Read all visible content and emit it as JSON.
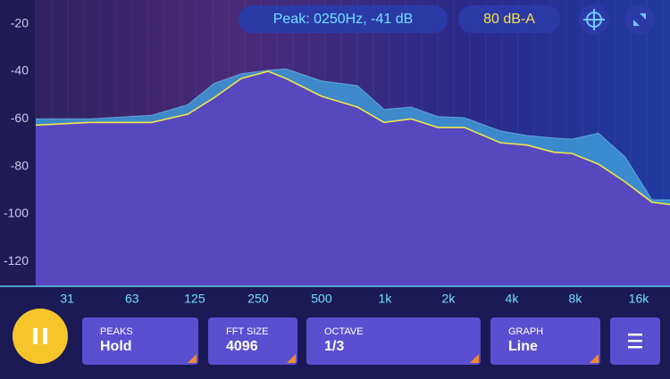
{
  "chart_data": {
    "type": "line",
    "x": [
      22,
      40,
      78,
      116,
      155,
      208,
      279,
      339,
      500,
      740,
      990,
      1330,
      1780,
      2380,
      3520,
      4730,
      6330,
      7700,
      10300,
      13800,
      18500,
      22528
    ],
    "series": [
      {
        "name": "Peaks",
        "color": "#7fd0f5",
        "fill": "#3e9ad8",
        "values": [
          -60,
          -60,
          -58.5,
          -54,
          -45,
          -41,
          -39.5,
          -39,
          -44,
          -46,
          -56,
          -55,
          -59,
          -59.5,
          -65,
          -67,
          -68,
          -68.5,
          -66,
          -76,
          -94,
          -94
        ]
      },
      {
        "name": "Line",
        "color": "#f2e64a",
        "fill": "#5848c0",
        "values": [
          -62.6,
          -61.5,
          -61.5,
          -58,
          -51,
          -43,
          -40,
          -43,
          -50.5,
          -55,
          -61.5,
          -60,
          -63.6,
          -63.6,
          -70,
          -71,
          -74,
          -74.5,
          -79,
          -86.5,
          -95,
          -96
        ]
      }
    ],
    "log_x": true,
    "xlim": [
      22,
      22528
    ],
    "xticks": [
      31,
      63,
      125,
      250,
      500,
      {
        "value": 1000,
        "label": "1k"
      },
      {
        "value": 2000,
        "label": "2k"
      },
      {
        "value": 4000,
        "label": "4k"
      },
      {
        "value": 8000,
        "label": "8k"
      },
      {
        "value": 16000,
        "label": "16k"
      }
    ],
    "ylim": [
      -130,
      -10
    ],
    "yticks": [
      -20,
      -40,
      -60,
      -80,
      -100,
      -120
    ],
    "grid": false
  },
  "readout": {
    "peak": "Peak: 0250Hz, -41 dB",
    "level": "80 dB-A"
  },
  "controls": [
    {
      "label": "PEAKS",
      "value": "Hold"
    },
    {
      "label": "FFT SIZE",
      "value": "4096"
    },
    {
      "label": "OCTAVE",
      "value": "1/3"
    },
    {
      "label": "GRAPH",
      "value": "Line"
    }
  ]
}
